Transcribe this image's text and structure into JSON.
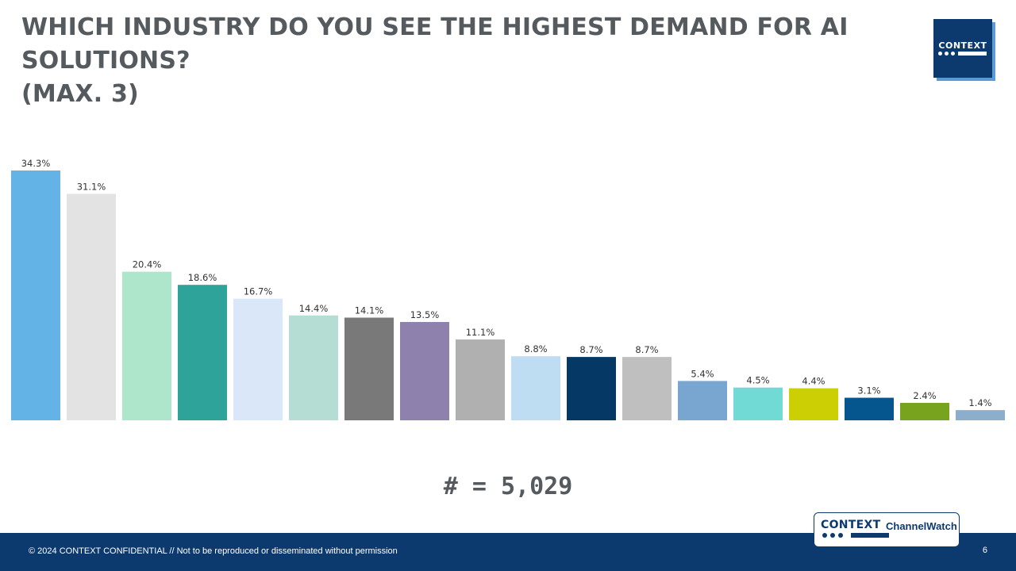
{
  "title": {
    "line1": "WHICH INDUSTRY DO YOU SEE THE HIGHEST DEMAND FOR AI SOLUTIONS?",
    "line2": "(MAX. 3)"
  },
  "logo": {
    "word": "CONTEXT"
  },
  "chart_data": {
    "type": "bar",
    "categories": [
      "",
      "",
      "",
      "",
      "",
      "",
      "",
      "",
      "",
      "",
      "",
      "",
      "",
      "",
      "",
      "",
      "",
      ""
    ],
    "values": [
      34.3,
      31.1,
      20.4,
      18.6,
      16.7,
      14.4,
      14.1,
      13.5,
      11.1,
      8.8,
      8.7,
      8.7,
      5.4,
      4.5,
      4.4,
      3.1,
      2.4,
      1.4
    ],
    "data_labels": [
      "34.3%",
      "31.1%",
      "20.4%",
      "18.6%",
      "16.7%",
      "14.4%",
      "14.1%",
      "13.5%",
      "11.1%",
      "8.8%",
      "8.7%",
      "8.7%",
      "5.4%",
      "4.5%",
      "4.4%",
      "3.1%",
      "2.4%",
      "1.4%"
    ],
    "colors": [
      "#63b3e6",
      "#e3e3e3",
      "#aee6cb",
      "#2ea39a",
      "#d9e7f8",
      "#b6ddd3",
      "#797979",
      "#8f81ad",
      "#b0b0b0",
      "#bedcf2",
      "#053865",
      "#bfbfbf",
      "#78a6d1",
      "#72dad5",
      "#cbcf03",
      "#05568f",
      "#78a31f",
      "#8aaecb"
    ],
    "ylim": [
      0,
      35
    ],
    "grid": false,
    "legend": "none",
    "title": "",
    "xlabel": "",
    "ylabel": ""
  },
  "sample_size": "# = 5,029",
  "footer": {
    "note": "© 2024 CONTEXT CONFIDENTIAL // Not to be reproduced or disseminated without permission",
    "page": "6"
  },
  "badge": {
    "brand": "CONTEXT",
    "product": "ChannelWatch"
  }
}
